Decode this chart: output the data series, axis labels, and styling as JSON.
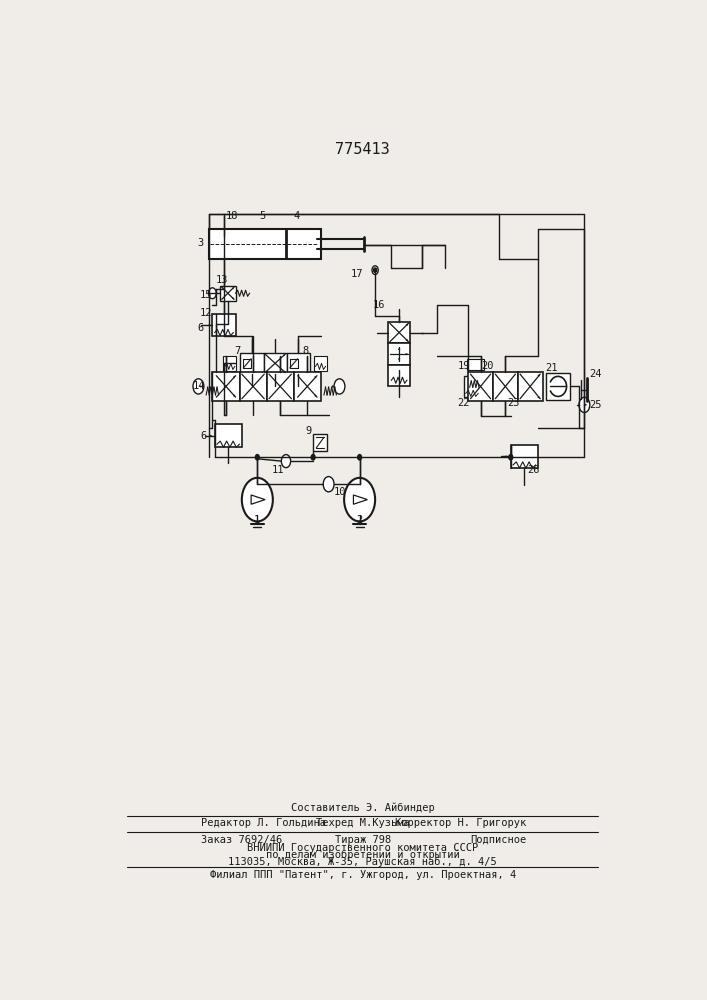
{
  "title": "775413",
  "bg_color": "#f0ede8",
  "line_color": "#1a1a1a",
  "footer": {
    "line1": "Составитель Э. Айбиндер",
    "line2_left": "Редактор Л. Гольдина",
    "line2_mid": "Техред М.Кузьма",
    "line2_right": "Корректор Н. Григорук",
    "line3_left": "Заказ 7692/46",
    "line3_mid": "Тираж 798",
    "line3_right": "Подписное",
    "line4": "ВНИИПИ Государственного комитета СССР",
    "line5": "по делам изобретений и открытий",
    "line6": "113035, Москва, Ж-35, Раушская наб., д. 4/5",
    "line7": "Филиал ППП \"Патент\", г. Ужгород, ул. Проектная, 4"
  }
}
